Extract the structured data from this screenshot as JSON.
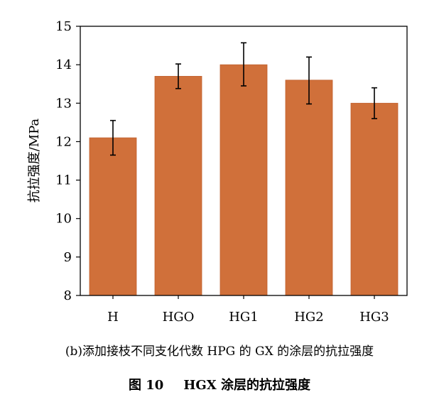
{
  "chart_data": {
    "type": "bar",
    "categories": [
      "H",
      "HGO",
      "HG1",
      "HG2",
      "HG3"
    ],
    "values": [
      12.1,
      13.7,
      14.0,
      13.6,
      13.0
    ],
    "error_low": [
      11.65,
      13.38,
      13.45,
      12.98,
      12.6
    ],
    "error_high": [
      12.55,
      14.02,
      14.57,
      14.2,
      13.4
    ],
    "ylabel": "抗拉强度/MPa",
    "xlabel": "",
    "ylim": [
      8,
      15
    ],
    "yticks": [
      8,
      9,
      10,
      11,
      12,
      13,
      14,
      15
    ],
    "grid": false,
    "legend": "none",
    "bar_color": "#D0703A",
    "bar_edge_color": "#C0602E"
  },
  "subcaption": "(b)添加接枝不同支化代数 HPG 的 GX 的涂层的抗拉强度",
  "caption": {
    "number": "图 10",
    "title": "HGX 涂层的抗拉强度"
  }
}
